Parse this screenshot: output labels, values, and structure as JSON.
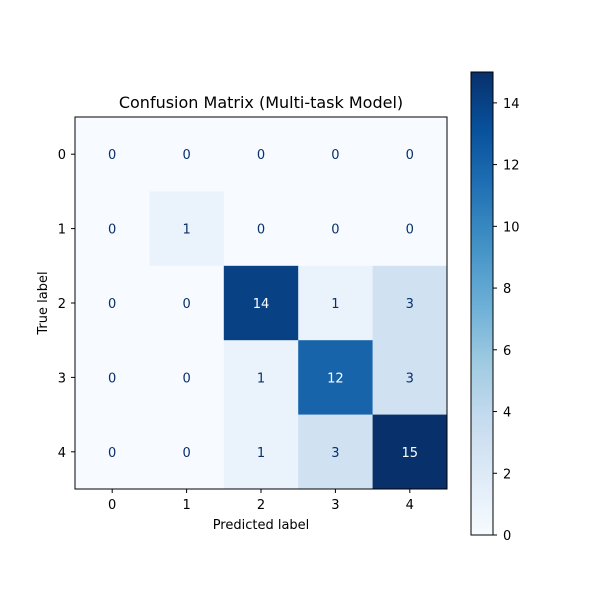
{
  "chart_data": {
    "type": "heatmap",
    "title": "Confusion Matrix (Multi-task Model)",
    "xlabel": "Predicted label",
    "ylabel": "True label",
    "x_categories": [
      "0",
      "1",
      "2",
      "3",
      "4"
    ],
    "y_categories": [
      "0",
      "1",
      "2",
      "3",
      "4"
    ],
    "values": [
      [
        0,
        0,
        0,
        0,
        0
      ],
      [
        0,
        1,
        0,
        0,
        0
      ],
      [
        0,
        0,
        14,
        1,
        3
      ],
      [
        0,
        0,
        1,
        12,
        3
      ],
      [
        0,
        0,
        1,
        3,
        15
      ]
    ],
    "colormap": "Blues",
    "colorbar": {
      "min": 0,
      "max": 15,
      "ticks": [
        0,
        2,
        4,
        6,
        8,
        10,
        12,
        14
      ]
    },
    "colors": {
      "low": "#f7fbff",
      "high": "#08306b",
      "text_dark": "#08306b",
      "text_light": "#ffffff"
    }
  }
}
